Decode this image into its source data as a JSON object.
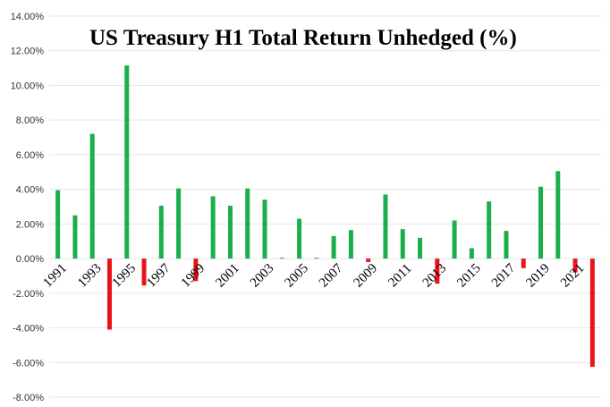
{
  "chart_data": {
    "type": "bar",
    "title": "US Treasury H1 Total Return Unhedged (%)",
    "xlabel": "",
    "ylabel": "",
    "ylim": [
      -8,
      14
    ],
    "y_ticks": [
      "14.00%",
      "12.00%",
      "10.00%",
      "8.00%",
      "6.00%",
      "4.00%",
      "2.00%",
      "0.00%",
      "-2.00%",
      "-4.00%",
      "-6.00%",
      "-8.00%"
    ],
    "y_tick_values": [
      14,
      12,
      10,
      8,
      6,
      4,
      2,
      0,
      -2,
      -4,
      -6,
      -8
    ],
    "grid": "horizontal",
    "legend": "none",
    "categories": [
      "1991",
      "1992",
      "1993",
      "1994",
      "1995",
      "1996",
      "1997",
      "1998",
      "1999",
      "2000",
      "2001",
      "2002",
      "2003",
      "2004",
      "2005",
      "2006",
      "2007",
      "2008",
      "2009",
      "2010",
      "2011",
      "2012",
      "2013",
      "2014",
      "2015",
      "2016",
      "2017",
      "2018",
      "2019",
      "2020",
      "2021",
      "2022"
    ],
    "category_labels": [
      "1991",
      "",
      "1993",
      "",
      "1995",
      "",
      "1997",
      "",
      "1999",
      "",
      "2001",
      "",
      "2003",
      "",
      "2005",
      "",
      "2007",
      "",
      "2009",
      "",
      "2011",
      "",
      "2013",
      "",
      "2015",
      "",
      "2017",
      "",
      "2019",
      "",
      "2021",
      ""
    ],
    "values": [
      3.95,
      2.5,
      7.2,
      -4.1,
      11.15,
      -1.55,
      3.05,
      4.05,
      -1.3,
      3.6,
      3.05,
      4.05,
      3.4,
      0.05,
      2.3,
      0.05,
      1.3,
      1.65,
      -0.2,
      3.7,
      1.7,
      1.2,
      -1.45,
      2.2,
      0.6,
      3.3,
      1.6,
      -0.55,
      4.15,
      5.05,
      -0.8,
      -6.25
    ],
    "colors": {
      "positive": "#1aaf4b",
      "negative": "#e8141a",
      "grid": "#e6e6e6"
    }
  }
}
